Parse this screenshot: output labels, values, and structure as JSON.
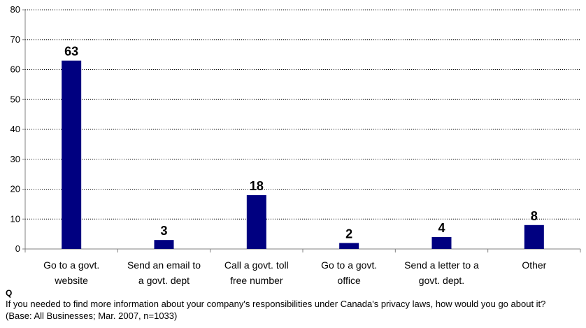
{
  "chart_data": {
    "type": "bar",
    "categories": [
      [
        "Go to a govt.",
        "website"
      ],
      [
        "Send an email to",
        "a govt. dept"
      ],
      [
        "Call a govt. toll",
        "free number"
      ],
      [
        "Go to a govt.",
        "office"
      ],
      [
        "Send a letter to a",
        "govt. dept."
      ],
      [
        "Other"
      ]
    ],
    "values": [
      63,
      3,
      18,
      2,
      4,
      8
    ],
    "data_labels": [
      "63",
      "3",
      "18",
      "2",
      "4",
      "8"
    ],
    "ylim": [
      0,
      80
    ],
    "yticks": [
      0,
      10,
      20,
      30,
      40,
      50,
      60,
      70,
      80
    ],
    "grid": true,
    "bar_color": "#000080"
  },
  "notes": {
    "q_label": "Q",
    "question": "If you needed to find more information about your company's responsibilities under Canada's privacy laws, how would you go about it?",
    "base": "(Base: All Businesses; Mar. 2007, n=1033)"
  }
}
